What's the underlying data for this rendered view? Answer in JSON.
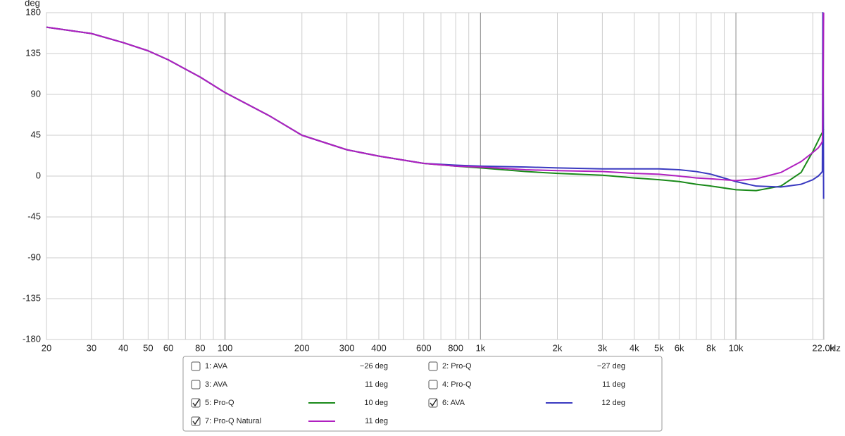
{
  "chart_data": {
    "type": "line",
    "y_label": "deg",
    "x_unit": "Hz",
    "log_x": true,
    "grid": true,
    "xlim": [
      20,
      22100
    ],
    "ylim": [
      -180,
      180
    ],
    "yticks": [
      180,
      135,
      90,
      45,
      0,
      -45,
      -90,
      -135,
      -180
    ],
    "xticks": [
      20,
      30,
      40,
      50,
      60,
      80,
      100,
      200,
      300,
      400,
      600,
      800,
      {
        "value": 1000,
        "label": "1k"
      },
      {
        "value": 2000,
        "label": "2k"
      },
      {
        "value": 3000,
        "label": "3k"
      },
      {
        "value": 4000,
        "label": "4k"
      },
      {
        "value": 5000,
        "label": "5k"
      },
      {
        "value": 6000,
        "label": "6k"
      },
      {
        "value": 8000,
        "label": "8k"
      },
      {
        "value": 10000,
        "label": "10k"
      },
      {
        "value": 22000,
        "label": "22.0k"
      }
    ],
    "minor_xticks": [
      70,
      90,
      500,
      700,
      900,
      7000,
      9000,
      20000
    ],
    "x": [
      20,
      30,
      40,
      50,
      60,
      80,
      100,
      150,
      200,
      300,
      400,
      600,
      800,
      1000,
      1500,
      2000,
      3000,
      4000,
      5000,
      6000,
      7000,
      8000,
      10000,
      12000,
      15000,
      18000,
      20000,
      21000,
      21500,
      21800,
      21900,
      22050
    ],
    "series": [
      {
        "name": "1: AVA",
        "readout": "−26 deg",
        "checked": false,
        "color": "#a0289f"
      },
      {
        "name": "2: Pro-Q",
        "readout": "−27 deg",
        "checked": false,
        "color": "#1a8080"
      },
      {
        "name": "3: AVA",
        "readout": "11 deg",
        "checked": false,
        "color": "#a88a20"
      },
      {
        "name": "4: Pro-Q",
        "readout": "11 deg",
        "checked": false,
        "color": "#a02020"
      },
      {
        "name": "5: Pro-Q",
        "readout": "10 deg",
        "checked": true,
        "color": "#1a8a1a",
        "values": [
          164,
          157,
          147,
          138,
          128,
          109,
          92,
          66,
          45,
          29,
          22,
          14,
          11,
          9,
          5,
          3,
          1,
          -2,
          -4,
          -6,
          -9,
          -11,
          -15,
          -16,
          -11,
          4,
          27,
          39,
          45,
          48,
          50,
          52
        ]
      },
      {
        "name": "6: AVA",
        "readout": "12 deg",
        "checked": true,
        "color": "#3a3ac0",
        "values": [
          164,
          157,
          147,
          138,
          128,
          109,
          92,
          66,
          45,
          29,
          22,
          14,
          12,
          11,
          10,
          9,
          8,
          8,
          8,
          7,
          5,
          2,
          -6,
          -11,
          -12,
          -9,
          -4,
          0,
          3,
          5,
          180,
          -25
        ]
      },
      {
        "name": "7: Pro-Q Natural",
        "readout": "11 deg",
        "checked": true,
        "color": "#b020c0",
        "values": [
          164,
          157,
          147,
          138,
          128,
          109,
          92,
          66,
          45,
          29,
          22,
          14,
          11,
          10,
          7,
          6,
          5,
          3,
          2,
          0,
          -2,
          -3,
          -5,
          -3,
          4,
          16,
          26,
          31,
          35,
          38,
          60,
          180
        ]
      }
    ]
  }
}
